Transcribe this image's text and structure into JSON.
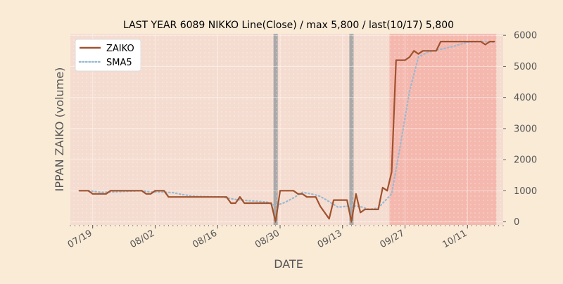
{
  "chart_data": {
    "type": "line",
    "title": "LAST YEAR 6089 NIKKO Line(Close) / max 5,800 / last(10/17) 5,800",
    "xlabel": "DATE",
    "ylabel": "IPPAN ZAIKO (volume)",
    "ylim": [
      -100,
      6050
    ],
    "y_ticks": [
      0,
      1000,
      2000,
      3000,
      4000,
      5000,
      6000
    ],
    "y_axis_side": "right",
    "x_ticks": [
      "07/19",
      "08/02",
      "08/16",
      "08/30",
      "09/13",
      "09/27",
      "10/11"
    ],
    "grid": true,
    "legend_position": "top-left",
    "background_color": "#faebd7",
    "series": [
      {
        "name": "ZAIKO",
        "color": "#a0522d",
        "style": "solid",
        "points": [
          [
            "2023-07-16",
            1000
          ],
          [
            "2023-07-18",
            1000
          ],
          [
            "2023-07-19",
            900
          ],
          [
            "2023-07-20",
            900
          ],
          [
            "2023-07-22",
            900
          ],
          [
            "2023-07-23",
            1000
          ],
          [
            "2023-07-25",
            1000
          ],
          [
            "2023-07-30",
            1000
          ],
          [
            "2023-07-31",
            900
          ],
          [
            "2023-08-01",
            900
          ],
          [
            "2023-08-02",
            1000
          ],
          [
            "2023-08-04",
            1000
          ],
          [
            "2023-08-05",
            800
          ],
          [
            "2023-08-14",
            800
          ],
          [
            "2023-08-18",
            800
          ],
          [
            "2023-08-19",
            600
          ],
          [
            "2023-08-20",
            600
          ],
          [
            "2023-08-21",
            800
          ],
          [
            "2023-08-22",
            600
          ],
          [
            "2023-08-28",
            600
          ],
          [
            "2023-08-29",
            0
          ],
          [
            "2023-08-30",
            1000
          ],
          [
            "2023-09-02",
            1000
          ],
          [
            "2023-09-03",
            900
          ],
          [
            "2023-09-04",
            900
          ],
          [
            "2023-09-05",
            800
          ],
          [
            "2023-09-07",
            800
          ],
          [
            "2023-09-08",
            500
          ],
          [
            "2023-09-10",
            100
          ],
          [
            "2023-09-11",
            700
          ],
          [
            "2023-09-14",
            700
          ],
          [
            "2023-09-15",
            0
          ],
          [
            "2023-09-16",
            900
          ],
          [
            "2023-09-17",
            300
          ],
          [
            "2023-09-18",
            400
          ],
          [
            "2023-09-21",
            400
          ],
          [
            "2023-09-22",
            1100
          ],
          [
            "2023-09-23",
            1000
          ],
          [
            "2023-09-24",
            1600
          ],
          [
            "2023-09-25",
            5200
          ],
          [
            "2023-09-27",
            5200
          ],
          [
            "2023-09-28",
            5300
          ],
          [
            "2023-09-29",
            5500
          ],
          [
            "2023-09-30",
            5400
          ],
          [
            "2023-10-01",
            5500
          ],
          [
            "2023-10-04",
            5500
          ],
          [
            "2023-10-05",
            5800
          ],
          [
            "2023-10-11",
            5800
          ],
          [
            "2023-10-14",
            5800
          ],
          [
            "2023-10-15",
            5700
          ],
          [
            "2023-10-16",
            5800
          ],
          [
            "2023-10-17",
            5800
          ]
        ]
      },
      {
        "name": "SMA5",
        "color": "#9ab9d2",
        "style": "dotted",
        "points": [
          [
            "2023-07-18",
            1000
          ],
          [
            "2023-07-21",
            950
          ],
          [
            "2023-07-25",
            970
          ],
          [
            "2023-07-30",
            1000
          ],
          [
            "2023-08-01",
            960
          ],
          [
            "2023-08-03",
            960
          ],
          [
            "2023-08-06",
            940
          ],
          [
            "2023-08-08",
            880
          ],
          [
            "2023-08-11",
            820
          ],
          [
            "2023-08-17",
            800
          ],
          [
            "2023-08-20",
            720
          ],
          [
            "2023-08-23",
            680
          ],
          [
            "2023-08-27",
            640
          ],
          [
            "2023-08-29",
            520
          ],
          [
            "2023-08-31",
            620
          ],
          [
            "2023-09-02",
            770
          ],
          [
            "2023-09-04",
            950
          ],
          [
            "2023-09-06",
            900
          ],
          [
            "2023-09-08",
            820
          ],
          [
            "2023-09-10",
            650
          ],
          [
            "2023-09-12",
            470
          ],
          [
            "2023-09-15",
            520
          ],
          [
            "2023-09-17",
            490
          ],
          [
            "2023-09-19",
            400
          ],
          [
            "2023-09-21",
            450
          ],
          [
            "2023-09-24",
            900
          ],
          [
            "2023-09-26",
            2500
          ],
          [
            "2023-09-28",
            4200
          ],
          [
            "2023-09-30",
            5300
          ],
          [
            "2023-10-02",
            5450
          ],
          [
            "2023-10-05",
            5550
          ],
          [
            "2023-10-08",
            5650
          ],
          [
            "2023-10-11",
            5780
          ],
          [
            "2023-10-14",
            5800
          ],
          [
            "2023-10-17",
            5780
          ]
        ]
      }
    ],
    "shaded_periods": [
      {
        "from": "2023-08-29",
        "to": "2023-08-29",
        "color": "#a9a9a9"
      },
      {
        "from": "2023-09-15",
        "to": "2023-09-15",
        "color": "#a9a9a9"
      },
      {
        "from": "2023-09-24",
        "to": "2023-10-17",
        "color": "#f4b8ae"
      }
    ]
  }
}
